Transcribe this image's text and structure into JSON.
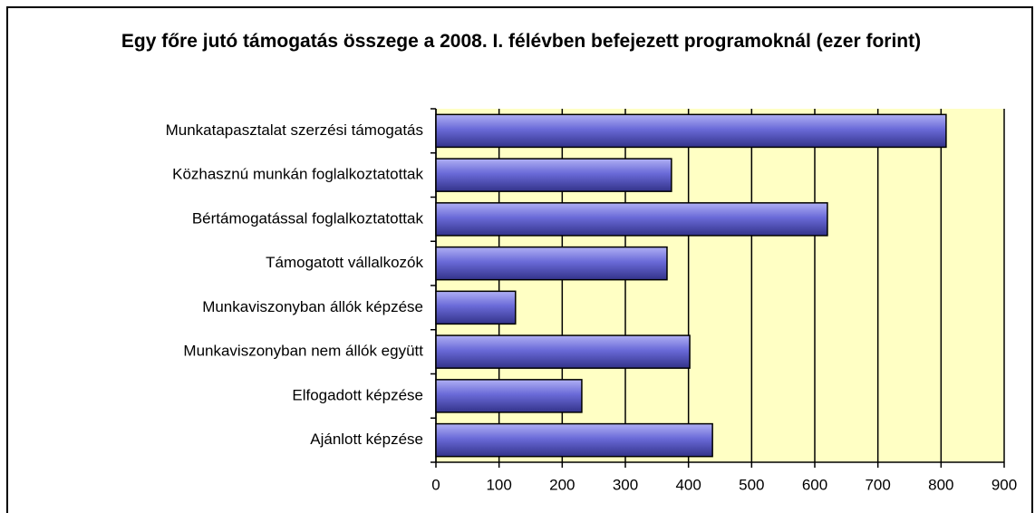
{
  "chart_data": {
    "type": "bar",
    "orientation": "horizontal",
    "title": "Egy főre jutó támogatás összege a 2008. I. félévben befejezett programoknál (ezer forint)",
    "categories": [
      "Munkatapasztalat szerzési támogatás",
      "Közhasznú munkán foglalkoztatottak",
      "Bértámogatással foglalkoztatottak",
      "Támogatott vállalkozók",
      "Munkaviszonyban állók képzése",
      "Munkaviszonyban nem állók együtt",
      "Elfogadott képzése",
      "Ajánlott képzése"
    ],
    "values": [
      808,
      373,
      620,
      366,
      126,
      402,
      231,
      438
    ],
    "color": "#6a6ad8",
    "xlim": [
      0,
      900
    ],
    "xticks": [
      0,
      100,
      200,
      300,
      400,
      500,
      600,
      700,
      800,
      900
    ],
    "grid": true
  }
}
